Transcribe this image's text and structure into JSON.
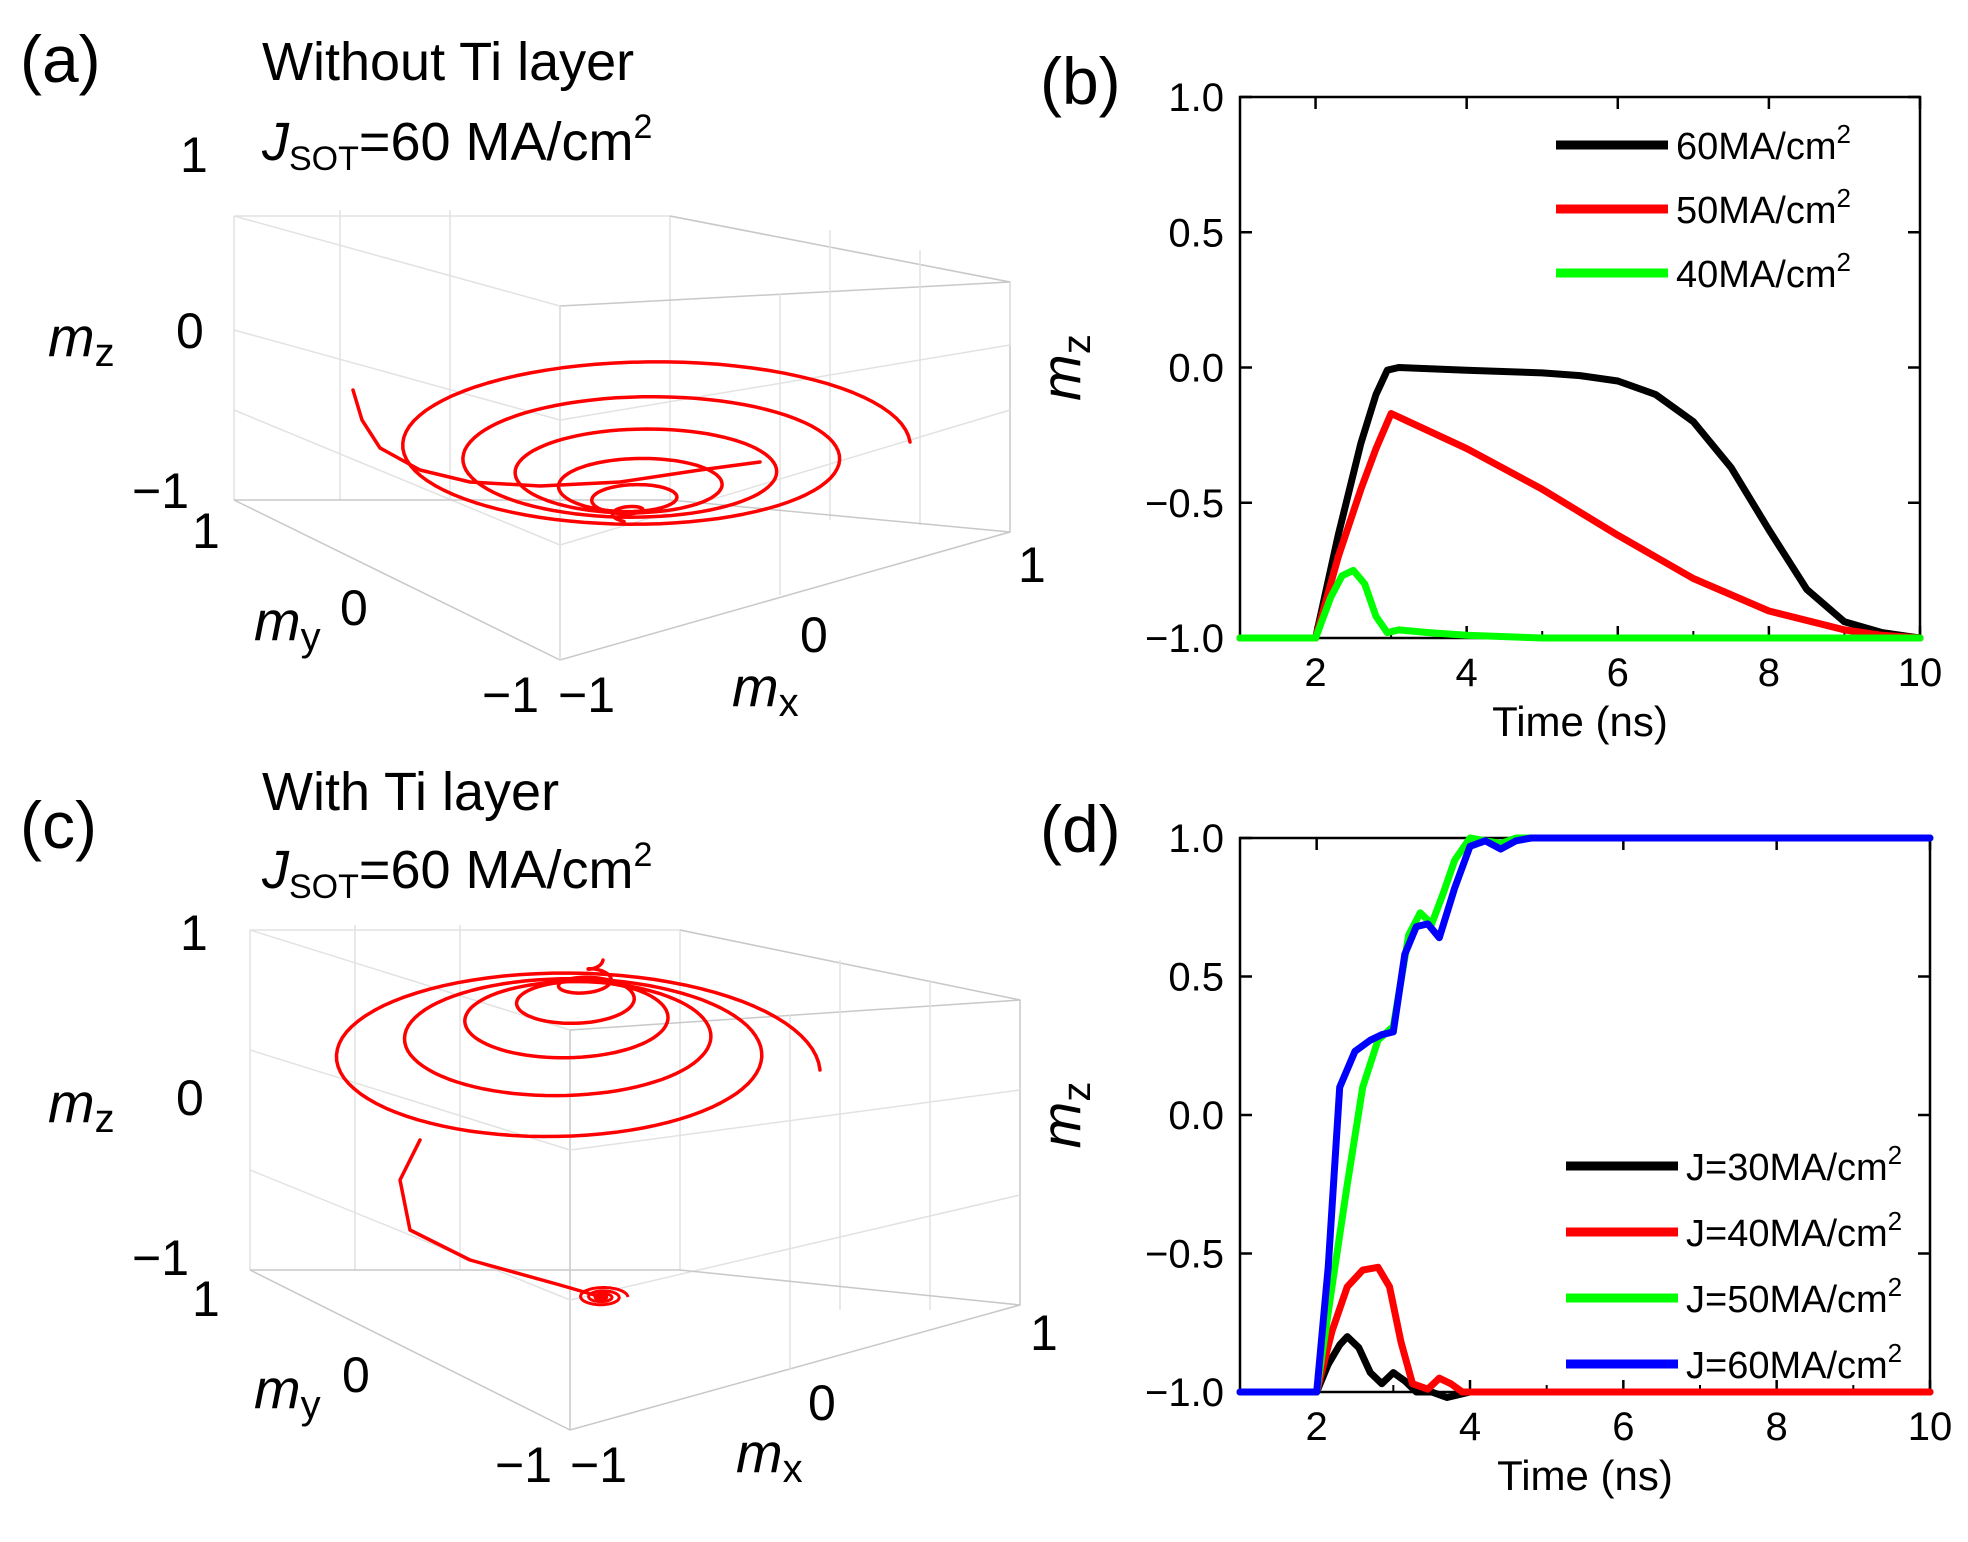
{
  "panels": {
    "a": {
      "label": "(a)",
      "title_line1": "Without Ti layer",
      "title_j": "J",
      "title_sub": "SOT",
      "title_rest": "=60 MA/cm",
      "title_sup": "2",
      "mz": "m",
      "mz_sub": "z",
      "my": "m",
      "my_sub": "y",
      "mx": "m",
      "mx_sub": "x",
      "ticks": {
        "z_top": "1",
        "z_mid": "0",
        "z_bot": "−1",
        "y_top": "1",
        "y_mid": "0",
        "y_bot": "−1",
        "x_left": "−1",
        "x_mid": "0",
        "x_right": "1"
      }
    },
    "b": {
      "label": "(b)"
    },
    "c": {
      "label": "(c)",
      "title_line1": "With Ti layer",
      "title_j": "J",
      "title_sub": "SOT",
      "title_rest": "=60 MA/cm",
      "title_sup": "2",
      "mz": "m",
      "mz_sub": "z",
      "my": "m",
      "my_sub": "y",
      "mx": "m",
      "mx_sub": "x",
      "ticks": {
        "z_top": "1",
        "z_mid": "0",
        "z_bot": "−1",
        "y_top": "1",
        "y_mid": "0",
        "y_bot": "−1",
        "x_left": "−1",
        "x_mid": "0",
        "x_right": "1"
      }
    },
    "d": {
      "label": "(d)"
    }
  },
  "colors": {
    "black": "#000000",
    "red": "#ff0000",
    "green": "#00ff00",
    "blue": "#0000ff"
  },
  "chart_data": [
    {
      "panel": "a",
      "type": "scatter",
      "subtype": "3d-trajectory",
      "color": "#ff0000",
      "axes": {
        "x": "mx",
        "y": "my",
        "z": "mz",
        "xlim": [
          -1,
          1
        ],
        "ylim": [
          -1,
          1
        ],
        "zlim": [
          -1,
          1
        ]
      },
      "start_point": {
        "mx": -0.05,
        "my": 0.95,
        "mz": -0.4
      },
      "end_point": {
        "mx": 0,
        "my": 0,
        "mz": -1
      },
      "outer_loop_radius": 0.9,
      "settles_to_mz": -1
    },
    {
      "panel": "b",
      "type": "line",
      "xlabel": "Time (ns)",
      "ylabel": "m",
      "ylabel_sub": "z",
      "xlim": [
        1,
        10
      ],
      "ylim": [
        -1,
        1
      ],
      "xticks": [
        2,
        4,
        6,
        8,
        10
      ],
      "yticks": [
        1.0,
        0.5,
        0.0,
        -0.5,
        -1.0
      ],
      "xtick_labels": [
        "2",
        "4",
        "6",
        "8",
        "10"
      ],
      "ytick_labels": [
        "1.0",
        "0.5",
        "0.0",
        "−0.5",
        "−1.0"
      ],
      "legend_position": "top-right",
      "series": [
        {
          "name": "60MA/cm",
          "name_sup": "2",
          "color": "#000000",
          "x": [
            1,
            2,
            2.3,
            2.6,
            2.8,
            2.95,
            3.1,
            4,
            5,
            5.5,
            6,
            6.5,
            7,
            7.5,
            8,
            8.5,
            9,
            9.5,
            10
          ],
          "y": [
            -1,
            -1,
            -0.62,
            -0.28,
            -0.1,
            -0.01,
            0,
            -0.01,
            -0.02,
            -0.03,
            -0.05,
            -0.1,
            -0.2,
            -0.37,
            -0.6,
            -0.82,
            -0.94,
            -0.98,
            -1
          ]
        },
        {
          "name": "50MA/cm",
          "name_sup": "2",
          "color": "#ff0000",
          "x": [
            1,
            2,
            2.3,
            2.6,
            2.8,
            3,
            4,
            5,
            6,
            7,
            8,
            9,
            9.5,
            10
          ],
          "y": [
            -1,
            -1,
            -0.7,
            -0.45,
            -0.3,
            -0.17,
            -0.3,
            -0.45,
            -0.62,
            -0.78,
            -0.9,
            -0.97,
            -0.99,
            -1
          ]
        },
        {
          "name": "40MA/cm",
          "name_sup": "2",
          "color": "#00ff00",
          "x": [
            1,
            2,
            2.2,
            2.35,
            2.5,
            2.65,
            2.8,
            2.95,
            3.1,
            3.5,
            4,
            5,
            10
          ],
          "y": [
            -1,
            -1,
            -0.85,
            -0.77,
            -0.75,
            -0.8,
            -0.92,
            -0.98,
            -0.97,
            -0.98,
            -0.99,
            -1,
            -1
          ]
        }
      ]
    },
    {
      "panel": "c",
      "type": "scatter",
      "subtype": "3d-trajectory",
      "color": "#ff0000",
      "axes": {
        "x": "mx",
        "y": "my",
        "z": "mz",
        "xlim": [
          -1,
          1
        ],
        "ylim": [
          -1,
          1
        ],
        "zlim": [
          -1,
          1
        ]
      },
      "start_point": {
        "mx": 0,
        "my": 0,
        "mz": -1
      },
      "end_point": {
        "mx": 0,
        "my": 0,
        "mz": 1
      },
      "outer_loop_radius": 0.95,
      "settles_to_mz": 1
    },
    {
      "panel": "d",
      "type": "line",
      "xlabel": "Time (ns)",
      "ylabel": "m",
      "ylabel_sub": "z",
      "xlim": [
        1,
        10
      ],
      "ylim": [
        -1,
        1
      ],
      "xticks": [
        2,
        4,
        6,
        8,
        10
      ],
      "yticks": [
        1.0,
        0.5,
        0.0,
        -0.5,
        -1.0
      ],
      "xtick_labels": [
        "2",
        "4",
        "6",
        "8",
        "10"
      ],
      "ytick_labels": [
        "1.0",
        "0.5",
        "0.0",
        "−0.5",
        "−1.0"
      ],
      "legend_position": "bottom-right",
      "series": [
        {
          "name": "J=30MA/cm",
          "name_sup": "2",
          "color": "#000000",
          "x": [
            1,
            2,
            2.15,
            2.3,
            2.4,
            2.55,
            2.7,
            2.85,
            3,
            3.15,
            3.3,
            3.5,
            3.7,
            4,
            10
          ],
          "y": [
            -1,
            -1,
            -0.9,
            -0.83,
            -0.8,
            -0.84,
            -0.93,
            -0.97,
            -0.93,
            -0.96,
            -1,
            -1,
            -1.02,
            -1,
            -1
          ]
        },
        {
          "name": "J=40MA/cm",
          "name_sup": "2",
          "color": "#ff0000",
          "x": [
            1,
            2,
            2.2,
            2.4,
            2.6,
            2.8,
            2.95,
            3.1,
            3.25,
            3.45,
            3.6,
            3.75,
            3.9,
            4.2,
            10
          ],
          "y": [
            -1,
            -1,
            -0.78,
            -0.62,
            -0.56,
            -0.55,
            -0.62,
            -0.82,
            -0.97,
            -0.99,
            -0.95,
            -0.97,
            -1,
            -1,
            -1
          ]
        },
        {
          "name": "J=50MA/cm",
          "name_sup": "2",
          "color": "#00ff00",
          "x": [
            1,
            2,
            2.2,
            2.4,
            2.6,
            2.8,
            3,
            3.2,
            3.35,
            3.5,
            3.65,
            3.8,
            4,
            4.2,
            4.4,
            4.6,
            5,
            10
          ],
          "y": [
            -1,
            -1,
            -0.62,
            -0.25,
            0.1,
            0.27,
            0.32,
            0.65,
            0.73,
            0.69,
            0.8,
            0.92,
            1.0,
            0.99,
            0.98,
            1.0,
            1,
            1
          ]
        },
        {
          "name": "J=60MA/cm",
          "name_sup": "2",
          "color": "#0000ff",
          "x": [
            1,
            2,
            2.15,
            2.3,
            2.5,
            2.7,
            2.85,
            3,
            3.15,
            3.3,
            3.45,
            3.6,
            3.8,
            4,
            4.2,
            4.4,
            4.6,
            4.8,
            5,
            10
          ],
          "y": [
            -1,
            -1,
            -0.55,
            0.1,
            0.23,
            0.27,
            0.29,
            0.3,
            0.58,
            0.68,
            0.69,
            0.64,
            0.82,
            0.97,
            0.99,
            0.96,
            0.99,
            1.0,
            1,
            1
          ]
        }
      ]
    }
  ]
}
